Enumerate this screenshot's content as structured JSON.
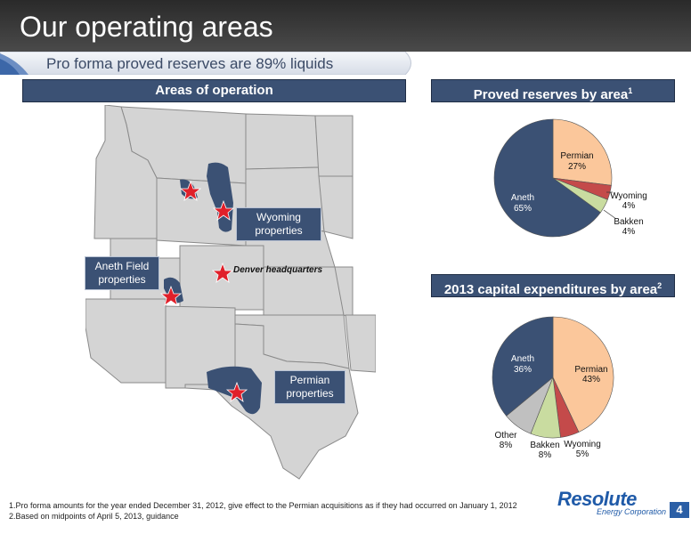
{
  "slide": {
    "title": "Our operating areas",
    "subtitle": "Pro forma proved reserves are 89% liquids",
    "page_number": "4"
  },
  "headers": {
    "areas": "Areas of operation",
    "proved": "Proved reserves by area",
    "proved_sup": "1",
    "capex": "2013 capital expenditures by area",
    "capex_sup": "2"
  },
  "map": {
    "wyoming_label": "Wyoming properties",
    "aneth_label": "Aneth Field properties",
    "permian_label": "Permian properties",
    "hq_label": "Denver headquarters",
    "colors": {
      "states": "#d4d4d4",
      "borders": "#8a8a8a",
      "basins": "#3b5174",
      "star": "#e0202a"
    }
  },
  "chart_data": [
    {
      "type": "pie",
      "title": "Proved reserves by area",
      "categories": [
        "Permian",
        "Wyoming",
        "Bakken",
        "Aneth"
      ],
      "values": [
        27,
        4,
        4,
        65
      ],
      "labels": [
        "27%",
        "4%",
        "4%",
        "65%"
      ],
      "colors": [
        "#fbc79b",
        "#c44a4a",
        "#c9dca0",
        "#3b5174"
      ]
    },
    {
      "type": "pie",
      "title": "2013 capital expenditures by area",
      "categories": [
        "Permian",
        "Wyoming",
        "Bakken",
        "Other",
        "Aneth"
      ],
      "values": [
        43,
        5,
        8,
        8,
        36
      ],
      "labels": [
        "43%",
        "5%",
        "8%",
        "8%",
        "36%"
      ],
      "colors": [
        "#fbc79b",
        "#c44a4a",
        "#c9dca0",
        "#c0c0c0",
        "#3b5174"
      ]
    }
  ],
  "footnotes": [
    "1.Pro forma amounts for the year ended December 31, 2012, give effect to the Permian acquisitions as if they had occurred on January 1, 2012",
    "2.Based on midpoints of April 5, 2013, guidance"
  ],
  "logo": {
    "name": "Resolute",
    "tagline": "Energy Corporation",
    "color": "#1f5aa8"
  }
}
